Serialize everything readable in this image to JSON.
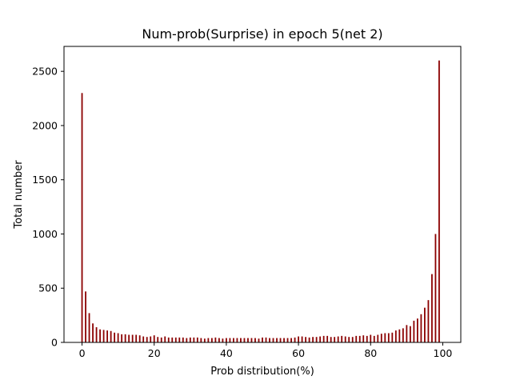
{
  "chart_data": {
    "type": "bar",
    "title": "Num-prob(Surprise) in epoch 5(net 2)",
    "xlabel": "Prob distribution(%)",
    "ylabel": "Total number",
    "xlim": [
      -5,
      105
    ],
    "ylim": [
      0,
      2730
    ],
    "xticks": [
      0,
      20,
      40,
      60,
      80,
      100
    ],
    "yticks": [
      0,
      500,
      1000,
      1500,
      2000,
      2500
    ],
    "bar_color": "#8b0000",
    "grid": false,
    "legend": "none",
    "x": [
      0,
      1,
      2,
      3,
      4,
      5,
      6,
      7,
      8,
      9,
      10,
      11,
      12,
      13,
      14,
      15,
      16,
      17,
      18,
      19,
      20,
      21,
      22,
      23,
      24,
      25,
      26,
      27,
      28,
      29,
      30,
      31,
      32,
      33,
      34,
      35,
      36,
      37,
      38,
      39,
      40,
      41,
      42,
      43,
      44,
      45,
      46,
      47,
      48,
      49,
      50,
      51,
      52,
      53,
      54,
      55,
      56,
      57,
      58,
      59,
      60,
      61,
      62,
      63,
      64,
      65,
      66,
      67,
      68,
      69,
      70,
      71,
      72,
      73,
      74,
      75,
      76,
      77,
      78,
      79,
      80,
      81,
      82,
      83,
      84,
      85,
      86,
      87,
      88,
      89,
      90,
      91,
      92,
      93,
      94,
      95,
      96,
      97,
      98,
      99
    ],
    "values": [
      2300,
      470,
      270,
      175,
      140,
      120,
      115,
      110,
      105,
      90,
      85,
      75,
      75,
      70,
      70,
      70,
      65,
      55,
      50,
      55,
      65,
      50,
      45,
      55,
      45,
      45,
      45,
      45,
      45,
      40,
      45,
      45,
      45,
      40,
      35,
      40,
      40,
      45,
      40,
      35,
      40,
      40,
      40,
      40,
      40,
      40,
      40,
      40,
      40,
      35,
      45,
      45,
      40,
      40,
      40,
      40,
      40,
      40,
      40,
      45,
      55,
      55,
      50,
      45,
      50,
      50,
      55,
      60,
      60,
      50,
      50,
      55,
      60,
      55,
      50,
      50,
      60,
      60,
      65,
      60,
      70,
      60,
      70,
      80,
      85,
      85,
      90,
      110,
      120,
      130,
      160,
      150,
      200,
      220,
      260,
      320,
      390,
      630,
      1000,
      2600
    ]
  }
}
